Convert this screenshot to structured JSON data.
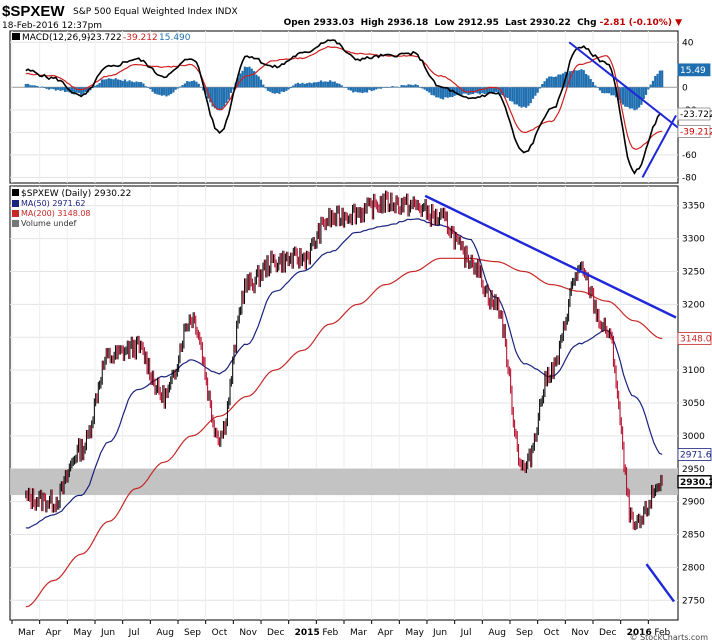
{
  "header": {
    "symbol": "$SPXEW",
    "name": "S&P 500 Equal Weighted Index INDX",
    "date": "18-Feb-2016 12:37pm",
    "open_label": "Open",
    "open": "2933.03",
    "high_label": "High",
    "high": "2936.18",
    "low_label": "Low",
    "low": "2912.95",
    "last_label": "Last",
    "last": "2930.22",
    "chg_label": "Chg",
    "chg": "-2.81 (-0.10%)",
    "brand": "© StockCharts.com"
  },
  "macd": {
    "legend_name": "MACD(12,26,9)",
    "macd_value": "-23.722",
    "signal_value": "-39.212",
    "hist_value": "15.490",
    "colors": {
      "macd": "#000000",
      "signal": "#d02020",
      "hist": "#1f6fb0"
    }
  },
  "price": {
    "legend_symbol": "$SPXEW (Daily) 2930.22",
    "legend_ma50": "MA(50) 2971.62",
    "legend_ma200": "MA(200) 3148.08",
    "legend_volume": "Volume undef",
    "colors": {
      "price_up": "#000000",
      "price_down": "#b00020",
      "ma50": "#1a237e",
      "ma200": "#c62828",
      "trend": "#1f28d8",
      "band": "#c0c0c0"
    }
  },
  "chart_data": [
    {
      "type": "line",
      "title": "MACD(12,26,9)",
      "y_ticks": [
        40,
        0,
        -20,
        -40,
        -60,
        -80
      ],
      "ylim": [
        -85,
        50
      ],
      "current_labels": {
        "histogram": 15.49,
        "macd": -23.722,
        "signal": -39.212
      },
      "x": [
        "2014-03",
        "2014-04",
        "2014-05",
        "2014-06",
        "2014-07",
        "2014-08",
        "2014-09",
        "2014-10",
        "2014-11",
        "2014-12",
        "2015-01",
        "2015-02",
        "2015-03",
        "2015-04",
        "2015-05",
        "2015-06",
        "2015-07",
        "2015-08",
        "2015-09",
        "2015-10",
        "2015-11",
        "2015-12",
        "2016-01",
        "2016-02"
      ],
      "series": [
        {
          "name": "MACD",
          "values": [
            15,
            8,
            -8,
            18,
            25,
            10,
            26,
            -40,
            28,
            18,
            30,
            42,
            25,
            28,
            30,
            0,
            -10,
            -5,
            -58,
            -20,
            36,
            22,
            -75,
            -24
          ]
        },
        {
          "name": "Signal",
          "values": [
            12,
            10,
            -2,
            10,
            20,
            18,
            20,
            -20,
            10,
            24,
            26,
            36,
            30,
            28,
            28,
            10,
            -4,
            0,
            -40,
            -30,
            20,
            28,
            -55,
            -39
          ]
        },
        {
          "name": "Histogram",
          "values": [
            3,
            -2,
            -6,
            8,
            5,
            -8,
            6,
            -20,
            18,
            -6,
            4,
            6,
            -5,
            0,
            2,
            -10,
            -6,
            -5,
            -18,
            10,
            16,
            -6,
            -20,
            15
          ]
        }
      ],
      "annotations": [
        "downtrend line from 2015-11 high",
        "uptrend line off 2016-01 low"
      ]
    },
    {
      "type": "line",
      "title": "$SPXEW (Daily) 2930.22",
      "x_ticks": [
        "Mar",
        "Apr",
        "May",
        "Jun",
        "Jul",
        "Aug",
        "Sep",
        "Oct",
        "Nov",
        "Dec",
        "2015",
        "Feb",
        "Mar",
        "Apr",
        "May",
        "Jun",
        "Jul",
        "Aug",
        "Sep",
        "Oct",
        "Nov",
        "Dec",
        "2016",
        "Feb"
      ],
      "y_ticks": [
        2750,
        2800,
        2850,
        2900,
        2950,
        3000,
        3050,
        3100,
        3150,
        3200,
        3250,
        3300,
        3350
      ],
      "ylim": [
        2720,
        3380
      ],
      "current_labels": {
        "ma200": 3148.08,
        "ma50": 2971.62,
        "last": 2930.22
      },
      "x": [
        "2014-03-01",
        "2014-04-01",
        "2014-05-01",
        "2014-06-01",
        "2014-07-01",
        "2014-08-01",
        "2014-09-01",
        "2014-10-01",
        "2014-11-01",
        "2014-12-01",
        "2015-01-01",
        "2015-02-01",
        "2015-03-01",
        "2015-04-01",
        "2015-05-01",
        "2015-06-01",
        "2015-07-01",
        "2015-08-01",
        "2015-09-01",
        "2015-10-01",
        "2015-11-01",
        "2015-12-01",
        "2016-01-01",
        "2016-02-01"
      ],
      "series": [
        {
          "name": "$SPXEW",
          "values": [
            2905,
            2900,
            2980,
            3120,
            3135,
            3060,
            3180,
            3000,
            3230,
            3265,
            3270,
            3330,
            3340,
            3355,
            3350,
            3330,
            3270,
            3200,
            2950,
            3100,
            3250,
            3160,
            2860,
            2930
          ]
        },
        {
          "name": "MA(50)",
          "values": [
            2860,
            2880,
            2910,
            2990,
            3070,
            3090,
            3115,
            3095,
            3140,
            3220,
            3250,
            3280,
            3310,
            3320,
            3330,
            3320,
            3300,
            3210,
            3110,
            3090,
            3140,
            3160,
            3060,
            2972
          ]
        },
        {
          "name": "MA(200)",
          "values": [
            2740,
            2780,
            2820,
            2870,
            2920,
            2960,
            3000,
            3030,
            3060,
            3100,
            3130,
            3170,
            3200,
            3230,
            3250,
            3270,
            3270,
            3265,
            3250,
            3230,
            3220,
            3205,
            3175,
            3148
          ]
        }
      ],
      "support_band": [
        2910,
        2950
      ],
      "annotations": [
        "downtrend resistance from 2015-05 high",
        "declining trendline on 2016 lows"
      ]
    }
  ]
}
